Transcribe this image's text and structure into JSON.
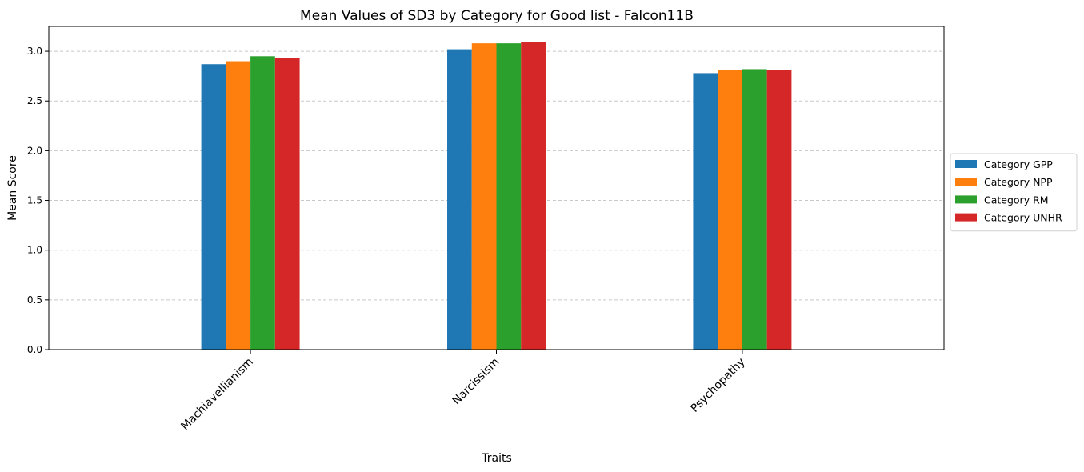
{
  "chart_data": {
    "type": "bar",
    "title": "Mean Values of SD3 by Category for Good list - Falcon11B",
    "xlabel": "Traits",
    "ylabel": "Mean Score",
    "categories": [
      "Machiavellianism",
      "Narcissism",
      "Psychopathy"
    ],
    "series": [
      {
        "name": "Category GPP",
        "color": "#1f77b4",
        "values": [
          2.87,
          3.02,
          2.78
        ]
      },
      {
        "name": "Category NPP",
        "color": "#ff7f0e",
        "values": [
          2.9,
          3.08,
          2.81
        ]
      },
      {
        "name": "Category RM",
        "color": "#2ca02c",
        "values": [
          2.95,
          3.08,
          2.82
        ]
      },
      {
        "name": "Category UNHR",
        "color": "#d62728",
        "values": [
          2.93,
          3.09,
          2.81
        ]
      }
    ],
    "ylim": [
      0,
      3.25
    ],
    "yticks": [
      0.0,
      0.5,
      1.0,
      1.5,
      2.0,
      2.5,
      3.0
    ],
    "grid": true,
    "legend_position": "center-right"
  }
}
